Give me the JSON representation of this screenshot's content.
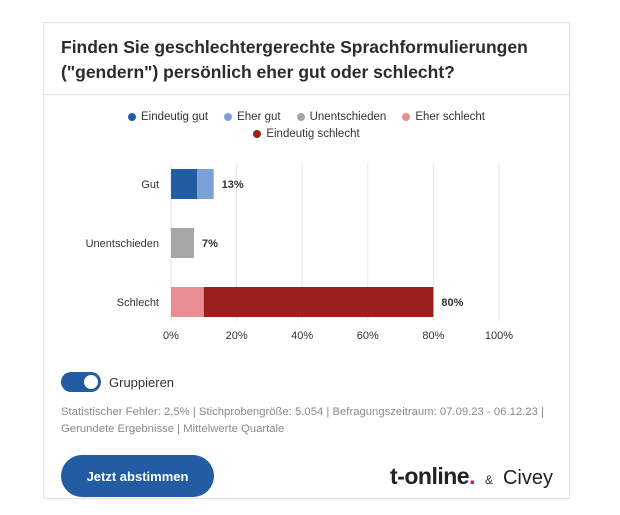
{
  "title": "Finden Sie geschlechtergerechte Sprachformulierungen (\"gendern\") persönlich eher gut oder schlecht?",
  "legend": [
    [
      {
        "label": "Eindeutig gut",
        "color": "#225ca3"
      },
      {
        "label": "Eher gut",
        "color": "#7ba0d8"
      },
      {
        "label": "Unentschieden",
        "color": "#a6a6a6"
      },
      {
        "label": "Eher schlecht",
        "color": "#e88e92"
      }
    ],
    [
      {
        "label": "Eindeutig schlecht",
        "color": "#9b1f1a"
      }
    ]
  ],
  "chart_data": {
    "type": "bar",
    "orientation": "horizontal",
    "stacked": true,
    "categories": [
      "Gut",
      "Unentschieden",
      "Schlecht"
    ],
    "segments": [
      [
        {
          "name": "Eindeutig gut",
          "value": 8,
          "color": "#225ca3"
        },
        {
          "name": "Eher gut",
          "value": 5,
          "color": "#7ba0d8"
        }
      ],
      [
        {
          "name": "Unentschieden",
          "value": 7,
          "color": "#a6a6a6"
        }
      ],
      [
        {
          "name": "Eher schlecht",
          "value": 10,
          "color": "#e88e92"
        },
        {
          "name": "Eindeutig schlecht",
          "value": 70,
          "color": "#9b1f1a"
        }
      ]
    ],
    "totals": [
      "13%",
      "7%",
      "80%"
    ],
    "x_ticks": [
      "0%",
      "20%",
      "40%",
      "60%",
      "80%",
      "100%"
    ],
    "xlim": [
      0,
      100
    ],
    "grid": true
  },
  "toggle": {
    "label": "Gruppieren",
    "on": true
  },
  "footnote": "Statistischer Fehler: 2,5% | Stichprobengröße: 5.054 | Befragungszeitraum: 07.09.23 - 06.12.23 | Gerundete Ergebnisse | Mittelwerte Quartale",
  "vote_button": "Jetzt abstimmen",
  "brands": {
    "tonline": "t-online",
    "tonline_dot": ".",
    "amp": "&",
    "civey": "Civey"
  }
}
